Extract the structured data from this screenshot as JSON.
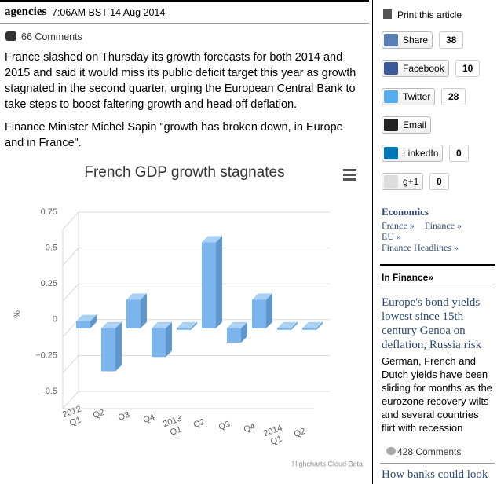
{
  "article": {
    "byline": "agencies",
    "timestamp": "7:06AM BST 14 Aug 2014",
    "comments": "66 Comments",
    "paragraphs": [
      "France slashed on Thursday its growth forecasts for both 2014 and 2015 and said it would miss its public deficit target this year as growth stagnated in the second quarter, urging the European Central Bank to take steps to boost faltering growth and head off deflation.",
      "Finance Minister Michel Sapin \"growth has broken down, in Europe and in France\"."
    ]
  },
  "chart_data": {
    "type": "bar",
    "title": "French GDP growth stagnates",
    "y_label": "%",
    "categories": [
      "2012\nQ1",
      "Q2",
      "Q3",
      "Q4",
      "2013\nQ1",
      "Q2",
      "Q3",
      "Q4",
      "2014\nQ1",
      "Q2"
    ],
    "values": [
      0.05,
      -0.3,
      0.2,
      -0.2,
      0.0,
      0.6,
      -0.1,
      0.2,
      0.0,
      0.0
    ],
    "color": "#7cb5ec",
    "ylim": [
      -0.5,
      0.75
    ],
    "yticks": [
      {
        "value": -0.5,
        "label": "−0.5"
      },
      {
        "value": -0.25,
        "label": "−0.25"
      },
      0,
      0.25,
      0.5,
      0.75
    ],
    "grid": true,
    "credits": "Highcharts Cloud Beta"
  },
  "sidebar": {
    "print": "Print this article",
    "share": [
      {
        "label": "Share",
        "count": 38
      },
      {
        "label": "Facebook",
        "count": 10
      },
      {
        "label": "Twitter",
        "count": 28
      },
      {
        "label": "Email"
      },
      {
        "label": "LinkedIn",
        "count": 0
      },
      {
        "label": "g+1",
        "count": 0
      }
    ],
    "section": {
      "title": "Economics",
      "links": [
        "France »",
        "Finance »",
        "EU »",
        "Finance Headlines »"
      ]
    },
    "in_finance": "In Finance»",
    "story": {
      "headline": "Europe's bond yields lowest since 15th century Genoa on deflation, Russia risk",
      "summary": "German, French and Dutch yields have been sliding for months as the eurozone recovery wilts and several countries flirt with recession",
      "comments": "428 Comments"
    },
    "next_headline": "How banks could look"
  }
}
